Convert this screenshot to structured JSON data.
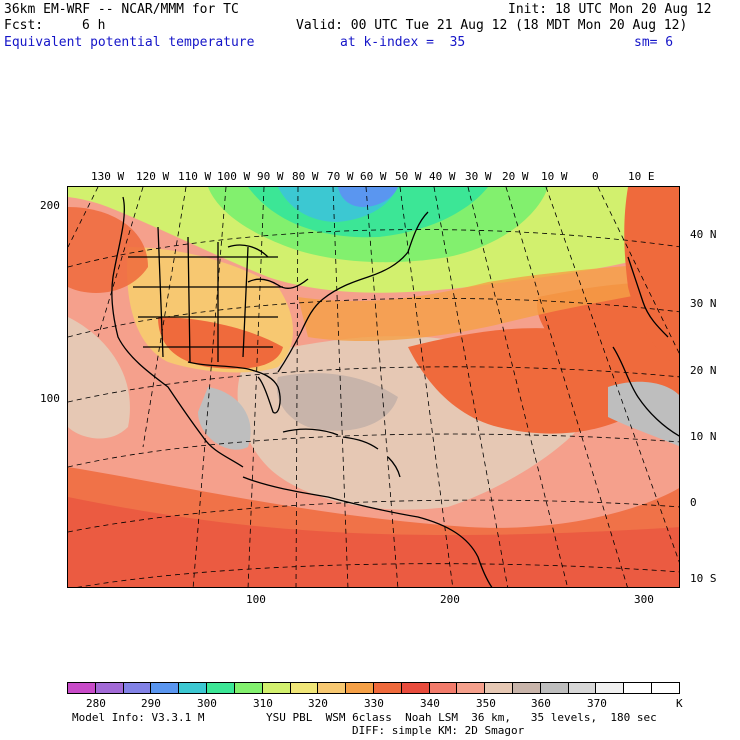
{
  "header": {
    "model": "36km EM-WRF -- NCAR/MMM for TC",
    "init": "Init: 18 UTC Mon 20 Aug 12",
    "fcst_label": "Fcst:",
    "fcst_value": "6 h",
    "valid": "Valid: 00 UTC Tue 21 Aug 12 (18 MDT Mon 20 Aug 12)",
    "field": "Equivalent potential temperature",
    "kindex": "at k-index =  35",
    "smooth": "sm= 6"
  },
  "map": {
    "top_lon_labels": [
      "130 W",
      "120 W",
      "110 W",
      "100 W",
      "90 W",
      "80 W",
      "70 W",
      "60 W",
      "50 W",
      "40 W",
      "30 W",
      "20 W",
      "10 W",
      "0",
      "10 E"
    ],
    "right_lat_labels": [
      "40 N",
      "30 N",
      "20 N",
      "10 N",
      "0",
      "10 S"
    ],
    "left_grid_labels": [
      "200",
      "100"
    ],
    "bottom_grid_labels": [
      "100",
      "200",
      "300"
    ]
  },
  "colorbar": {
    "colors": [
      "#c84bc8",
      "#a26ad6",
      "#8282e6",
      "#5a96f0",
      "#3cc8d2",
      "#3ce696",
      "#82f06e",
      "#d2f06e",
      "#f0e678",
      "#f7c871",
      "#f5a046",
      "#ef6a3c",
      "#e84c3d",
      "#f27b6b",
      "#f5a08c",
      "#e6c8b4",
      "#c8b4aa",
      "#bebebe",
      "#d7d7d7",
      "#f0f0f0",
      "#ffffff",
      "#ffffff"
    ],
    "labels": [
      "280",
      "290",
      "300",
      "310",
      "320",
      "330",
      "340",
      "350",
      "360",
      "370"
    ],
    "unit": "K"
  },
  "footer": {
    "model_info": "Model Info: V3.3.1 M",
    "physics": "YSU PBL  WSM 6class  Noah LSM  36 km,   35 levels,  180 sec",
    "diffusion": "DIFF: simple KM: 2D Smagor"
  }
}
